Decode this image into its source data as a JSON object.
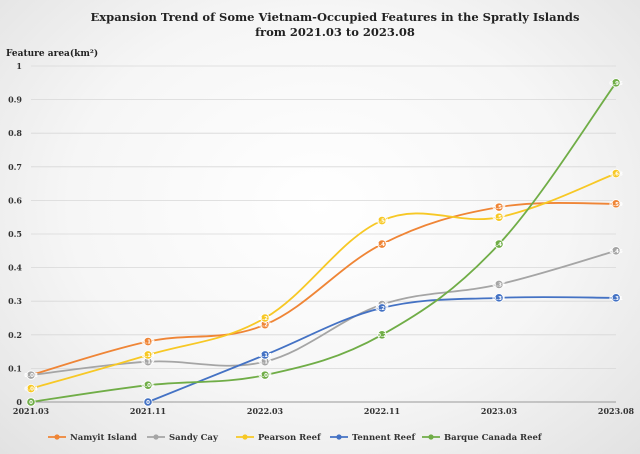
{
  "chart_data": {
    "type": "line",
    "title": "Expansion Trend of Some Vietnam-Occupied Features in the Spratly Islands",
    "subtitle": "from 2021.03 to 2023.08",
    "xlabel": "",
    "ylabel": "Feature area(km²)",
    "categories": [
      "2021.03",
      "2021.11",
      "2022.03",
      "2022.11",
      "2023.03",
      "2023.08"
    ],
    "ylim": [
      0,
      1
    ],
    "yticks": [
      "0",
      "0.1",
      "0.2",
      "0.3",
      "0.4",
      "0.5",
      "0.6",
      "0.7",
      "0.8",
      "0.9",
      "1"
    ],
    "grid": true,
    "legend_position": "bottom",
    "series": [
      {
        "name": "Namyit Island",
        "color": "#ef8536",
        "values": [
          0.08,
          0.18,
          0.23,
          0.47,
          0.58,
          0.59
        ]
      },
      {
        "name": "Sandy Cay",
        "color": "#a5a5a5",
        "values": [
          0.08,
          0.12,
          0.12,
          0.29,
          0.35,
          0.45
        ]
      },
      {
        "name": "Pearson Reef",
        "color": "#f7c825",
        "values": [
          0.04,
          0.14,
          0.25,
          0.54,
          0.55,
          0.68
        ]
      },
      {
        "name": "Tennent Reef",
        "color": "#4472c4",
        "values": [
          null,
          0.0,
          0.14,
          0.28,
          0.31,
          0.31
        ]
      },
      {
        "name": "Barque Canada Reef",
        "color": "#70ad47",
        "values": [
          0.0,
          0.05,
          0.08,
          0.2,
          0.47,
          0.95
        ]
      }
    ]
  }
}
